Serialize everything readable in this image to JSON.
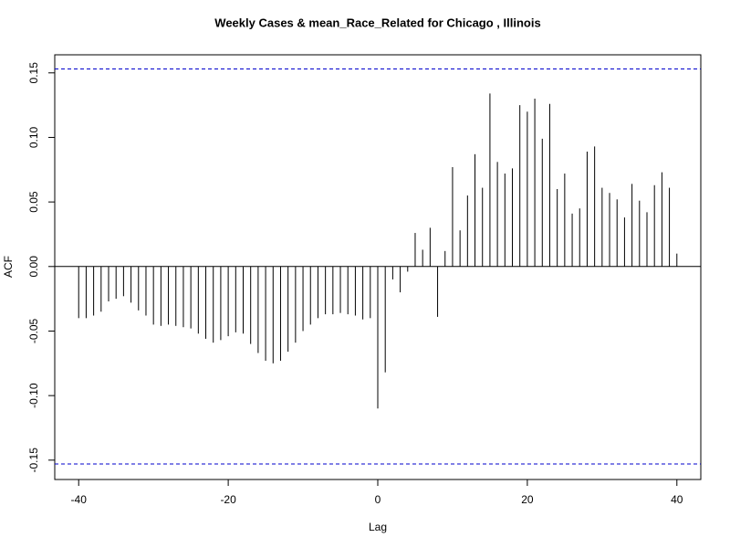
{
  "chart_data": {
    "type": "acf",
    "title": "Weekly Cases & mean_Race_Related for Chicago , Illinois",
    "x_label": "Lag",
    "y_label": "ACF",
    "x": [
      -40,
      -39,
      -38,
      -37,
      -36,
      -35,
      -34,
      -33,
      -32,
      -31,
      -30,
      -29,
      -28,
      -27,
      -26,
      -25,
      -24,
      -23,
      -22,
      -21,
      -20,
      -19,
      -18,
      -17,
      -16,
      -15,
      -14,
      -13,
      -12,
      -11,
      -10,
      -9,
      -8,
      -7,
      -6,
      -5,
      -4,
      -3,
      -2,
      -1,
      0,
      1,
      2,
      3,
      4,
      5,
      6,
      7,
      8,
      9,
      10,
      11,
      12,
      13,
      14,
      15,
      16,
      17,
      18,
      19,
      20,
      21,
      22,
      23,
      24,
      25,
      26,
      27,
      28,
      29,
      30,
      31,
      32,
      33,
      34,
      35,
      36,
      37,
      38,
      39,
      40
    ],
    "values": [
      -0.04,
      -0.04,
      -0.038,
      -0.035,
      -0.027,
      -0.025,
      -0.023,
      -0.028,
      -0.034,
      -0.038,
      -0.045,
      -0.046,
      -0.045,
      -0.046,
      -0.047,
      -0.048,
      -0.052,
      -0.056,
      -0.059,
      -0.057,
      -0.054,
      -0.051,
      -0.052,
      -0.06,
      -0.067,
      -0.073,
      -0.075,
      -0.073,
      -0.066,
      -0.059,
      -0.05,
      -0.045,
      -0.04,
      -0.037,
      -0.037,
      -0.036,
      -0.037,
      -0.038,
      -0.041,
      -0.04,
      -0.11,
      -0.082,
      -0.01,
      -0.02,
      -0.004,
      0.026,
      0.013,
      0.03,
      -0.039,
      0.012,
      0.077,
      0.028,
      0.055,
      0.087,
      0.061,
      0.134,
      0.081,
      0.072,
      0.076,
      0.125,
      0.12,
      0.13,
      0.099,
      0.126,
      0.06,
      0.072,
      0.041,
      0.045,
      0.089,
      0.093,
      0.061,
      0.057,
      0.052,
      0.038,
      0.064,
      0.051,
      0.042,
      0.063,
      0.073,
      0.061,
      0.01
    ],
    "color": "#000000",
    "confidence_bounds": [
      0.153,
      -0.153
    ],
    "bound_color": "#0000cc",
    "xlim": [
      -43.2,
      43.2
    ],
    "ylim": [
      -0.165,
      0.164
    ],
    "xticks": [
      -40,
      -20,
      0,
      20,
      40
    ],
    "yticks": [
      -0.15,
      {
        "value": -0.1,
        "label": "-0.10"
      },
      -0.05,
      {
        "value": 0,
        "label": "0.00"
      },
      0.05,
      {
        "value": 0.1,
        "label": "0.10"
      },
      0.15
    ]
  }
}
